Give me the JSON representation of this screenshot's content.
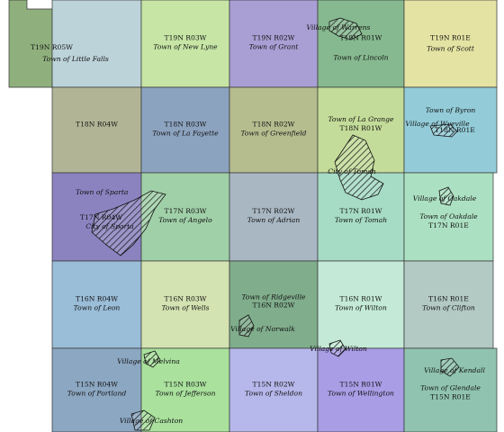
{
  "map": {
    "cells": [
      {
        "row": 0,
        "col": 0,
        "township": "T19N R05W",
        "town": "Town of Little Falls",
        "color": "#8fb07d"
      },
      {
        "row": 0,
        "col": 1,
        "township": "",
        "town": "",
        "color": "#bcd3d9"
      },
      {
        "row": 0,
        "col": 2,
        "township": "T19N R03W",
        "town": "Town of New Lyne",
        "color": "#c7e6a6"
      },
      {
        "row": 0,
        "col": 3,
        "township": "T19N R02W",
        "town": "Town of Grant",
        "color": "#a99fd4"
      },
      {
        "row": 0,
        "col": 4,
        "township": "T19N R01W",
        "town": "Town of Lincoln",
        "color": "#86b98f"
      },
      {
        "row": 0,
        "col": 5,
        "township": "T19N R01E",
        "town": "Town of Scott",
        "color": "#e4e3a3"
      },
      {
        "row": 1,
        "col": 0,
        "township": "T18N R04W",
        "town": "",
        "color": "#b1b596"
      },
      {
        "row": 1,
        "col": 1,
        "township": "T18N R03W",
        "town": "Town of La Fayette",
        "color": "#8ca3bf"
      },
      {
        "row": 1,
        "col": 2,
        "township": "T18N R02W",
        "town": "Town of Greenfield",
        "color": "#b5bd8f"
      },
      {
        "row": 1,
        "col": 3,
        "township": "T18N R01W",
        "town": "Town of La Grange",
        "color": "#c3dc99"
      },
      {
        "row": 1,
        "col": 4,
        "township": "T18N R01E",
        "town": "Town of Byron",
        "color": "#93ccd8"
      },
      {
        "row": 2,
        "col": 0,
        "township": "T17N R04W",
        "town": "Town of Sparta",
        "color": "#8b83c0"
      },
      {
        "row": 2,
        "col": 1,
        "township": "T17N R03W",
        "town": "Town of Angelo",
        "color": "#a0d0a8"
      },
      {
        "row": 2,
        "col": 2,
        "township": "T17N R02W",
        "town": "Town of Adrian",
        "color": "#a8b7c2"
      },
      {
        "row": 2,
        "col": 3,
        "township": "T17N R01W",
        "town": "Town of Tomah",
        "color": "#a6dbc6"
      },
      {
        "row": 2,
        "col": 4,
        "township": "T17N R01E",
        "town": "Town of Oakdale",
        "color": "#ace0c2"
      },
      {
        "row": 3,
        "col": 0,
        "township": "T16N R04W",
        "town": "Town of Leon",
        "color": "#9abdd8"
      },
      {
        "row": 3,
        "col": 1,
        "township": "T16N R03W",
        "town": "Town of Wells",
        "color": "#d4e3b2"
      },
      {
        "row": 3,
        "col": 2,
        "township": "T16N R02W",
        "town": "Town of Ridgeville",
        "color": "#80ad8c"
      },
      {
        "row": 3,
        "col": 3,
        "township": "T16N R01W",
        "town": "Town of Wilton",
        "color": "#c4ead7"
      },
      {
        "row": 3,
        "col": 4,
        "township": "T16N R01E",
        "town": "Town of Clifton",
        "color": "#b3c9c4"
      },
      {
        "row": 4,
        "col": 0,
        "township": "T15N R04W",
        "town": "Town of Portland",
        "color": "#8ca7c1"
      },
      {
        "row": 4,
        "col": 1,
        "township": "T15N R03W",
        "town": "Town of Jefferson",
        "color": "#a9e19d"
      },
      {
        "row": 4,
        "col": 2,
        "township": "T15N R02W",
        "town": "Town of Sheldon",
        "color": "#b6b7ea"
      },
      {
        "row": 4,
        "col": 3,
        "township": "T15N R01W",
        "town": "Town of Wellington",
        "color": "#a99de6"
      },
      {
        "row": 4,
        "col": 4,
        "township": "T15N R01E",
        "town": "Town of Glendale",
        "color": "#90c4b0"
      }
    ],
    "places": [
      {
        "name": "Village of Warrens"
      },
      {
        "name": "Village of Wyeville"
      },
      {
        "name": "City of Tomah"
      },
      {
        "name": "City of Sparta"
      },
      {
        "name": "Village of Oakdale"
      },
      {
        "name": "Village of Norwalk"
      },
      {
        "name": "Village of Wilton"
      },
      {
        "name": "Village of Melvina"
      },
      {
        "name": "Village of Kendall"
      },
      {
        "name": "Village of Cashton"
      }
    ]
  }
}
